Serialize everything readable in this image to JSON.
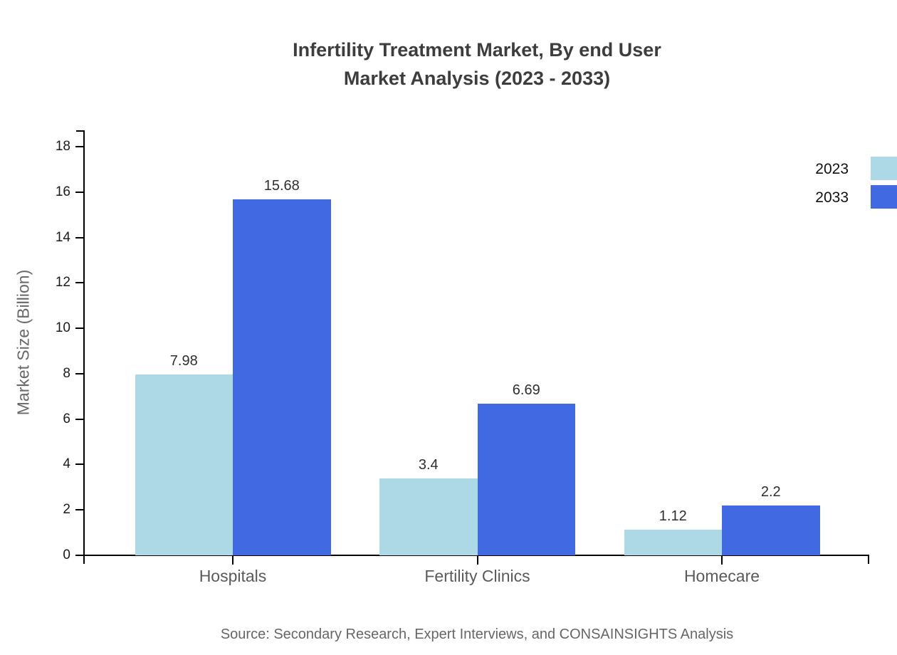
{
  "title": {
    "line1": "Infertility Treatment Market, By end User",
    "line2": "Market Analysis (2023 - 2033)"
  },
  "source_note": "Source: Secondary Research, Expert Interviews, and CONSAINSIGHTS Analysis",
  "chart_data": {
    "type": "bar",
    "title": "Infertility Treatment Market, By end User Market Analysis (2023 - 2033)",
    "categories": [
      "Hospitals",
      "Fertility Clinics",
      "Homecare"
    ],
    "series": [
      {
        "name": "2023",
        "color": "#ADD8E6",
        "values": [
          7.98,
          3.4,
          1.12
        ]
      },
      {
        "name": "2033",
        "color": "#4169E1",
        "values": [
          15.68,
          6.69,
          2.2
        ]
      }
    ],
    "value_labels": {
      "2023": [
        "7.98",
        "3.4",
        "1.12"
      ],
      "2033": [
        "15.68",
        "6.69",
        "2.2"
      ]
    },
    "xlabel": "",
    "ylabel": "Market Size (Billion)",
    "ylim": [
      0,
      18
    ],
    "ytick_step": 2,
    "ytick_labels": [
      "0",
      "2",
      "4",
      "6",
      "8",
      "10",
      "12",
      "14",
      "16",
      "18"
    ],
    "grid": false,
    "legend_position": "top-right",
    "bar_value_label_color": "#2e2e2e",
    "axis_color": "#000000"
  }
}
